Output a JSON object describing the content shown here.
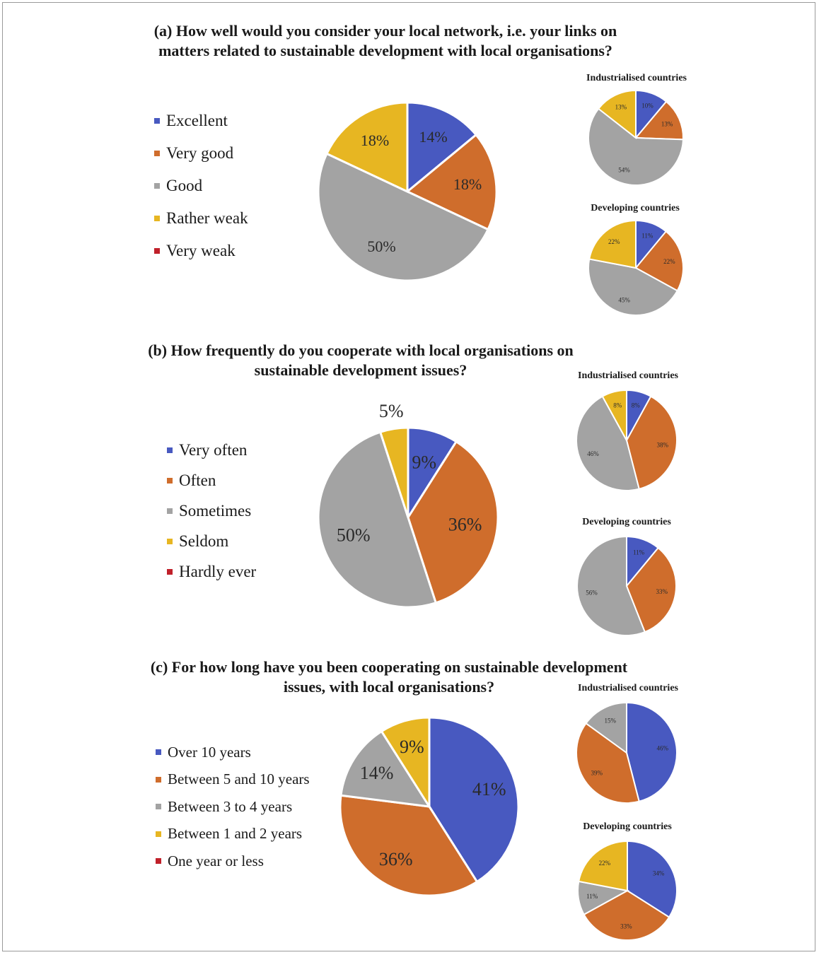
{
  "colors": {
    "excellent": "#4859c0",
    "very_good": "#cf6d2c",
    "good": "#a3a3a3",
    "rather_weak": "#e7b622",
    "very_weak": "#c0202a"
  },
  "chart_data": [
    {
      "type": "pie",
      "panel": "a",
      "title_lines": [
        "(a) How well would you consider your local network, i.e. your links on",
        "matters related to sustainable development with local organisations?"
      ],
      "legend_position": "left",
      "categories": [
        "Excellent",
        "Very good",
        "Good",
        "Rather weak",
        "Very weak"
      ],
      "values": [
        14,
        18,
        50,
        18,
        0
      ],
      "labels": [
        "14%",
        "18%",
        "50%",
        "18%",
        ""
      ],
      "sub_charts": [
        {
          "title": "Industrialised countries",
          "values": [
            10,
            13,
            54,
            13,
            0
          ],
          "labels": [
            "10%",
            "13%",
            "54%",
            "13%",
            ""
          ]
        },
        {
          "title": "Developing countries",
          "values": [
            11,
            22,
            45,
            22,
            0
          ],
          "labels": [
            "11%",
            "22%",
            "45%",
            "22%",
            ""
          ]
        }
      ]
    },
    {
      "type": "pie",
      "panel": "b",
      "title_lines": [
        "(b) How frequently do you cooperate with local organisations on",
        "sustainable development issues?"
      ],
      "legend_position": "left",
      "categories": [
        "Very often",
        "Often",
        "Sometimes",
        "Seldom",
        "Hardly ever"
      ],
      "values": [
        9,
        36,
        50,
        5,
        0
      ],
      "labels": [
        "9%",
        "36%",
        "50%",
        "5%",
        ""
      ],
      "sub_charts": [
        {
          "title": "Industrialised countries",
          "values": [
            8,
            38,
            46,
            8,
            0
          ],
          "labels": [
            "8%",
            "38%",
            "46%",
            "8%",
            ""
          ]
        },
        {
          "title": "Developing countries",
          "values": [
            11,
            33,
            56,
            0,
            0
          ],
          "labels": [
            "11%",
            "33%",
            "56%",
            "",
            ""
          ]
        }
      ]
    },
    {
      "type": "pie",
      "panel": "c",
      "title_lines": [
        "(c) For how long have you been cooperating on sustainable development",
        "issues, with local organisations?"
      ],
      "legend_position": "left",
      "categories": [
        "Over 10 years",
        "Between 5 and 10 years",
        "Between 3 to 4 years",
        "Between 1 and 2 years",
        "One year or less"
      ],
      "values": [
        41,
        36,
        14,
        9,
        0
      ],
      "labels": [
        "41%",
        "36%",
        "14%",
        "9%",
        ""
      ],
      "sub_charts": [
        {
          "title": "Industrialised countries",
          "values": [
            46,
            39,
            15,
            0,
            0
          ],
          "labels": [
            "46%",
            "39%",
            "15%",
            "",
            ""
          ]
        },
        {
          "title": "Developing countries",
          "values": [
            34,
            33,
            11,
            22,
            0
          ],
          "labels": [
            "34%",
            "33%",
            "11%",
            "22%",
            ""
          ]
        }
      ]
    }
  ]
}
